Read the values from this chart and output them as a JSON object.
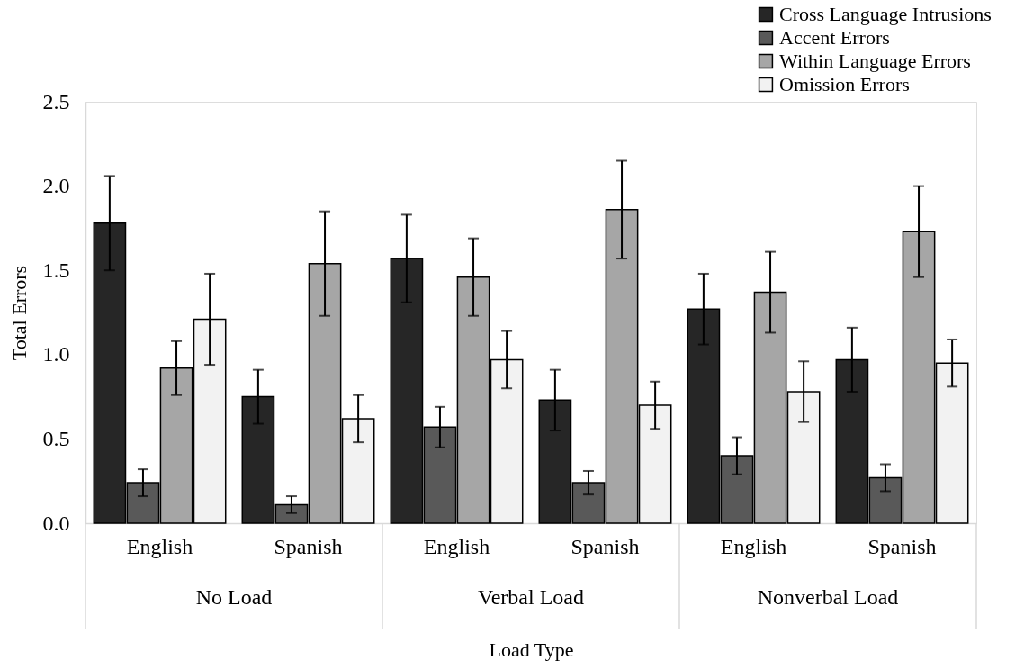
{
  "chart_data": {
    "type": "bar",
    "xlabel": "Load Type",
    "ylabel": "Total Errors",
    "categories": [
      "English",
      "Spanish",
      "English",
      "Spanish",
      "English",
      "Spanish"
    ],
    "annotations": [
      "No Load",
      "Verbal Load",
      "Nonverbal Load"
    ],
    "series": [
      {
        "name": "Cross Language Intrusions",
        "color": "#262626",
        "values": [
          1.78,
          0.75,
          1.57,
          0.73,
          1.27,
          0.97
        ],
        "errors": [
          0.28,
          0.16,
          0.26,
          0.18,
          0.21,
          0.19
        ]
      },
      {
        "name": "Accent Errors",
        "color": "#595959",
        "values": [
          0.24,
          0.11,
          0.57,
          0.24,
          0.4,
          0.27
        ],
        "errors": [
          0.08,
          0.05,
          0.12,
          0.07,
          0.11,
          0.08
        ]
      },
      {
        "name": "Within Language Errors",
        "color": "#a6a6a6",
        "values": [
          0.92,
          1.54,
          1.46,
          1.86,
          1.37,
          1.73
        ],
        "errors": [
          0.16,
          0.31,
          0.23,
          0.29,
          0.24,
          0.27
        ]
      },
      {
        "name": "Omission Errors",
        "color": "#f2f2f2",
        "values": [
          1.21,
          0.62,
          0.97,
          0.7,
          0.78,
          0.95
        ],
        "errors": [
          0.27,
          0.14,
          0.17,
          0.14,
          0.18,
          0.14
        ]
      }
    ],
    "ylim": [
      0,
      2.5
    ],
    "yticks": [
      {
        "value": 0,
        "label": "0.0"
      },
      0.5,
      {
        "value": 1,
        "label": "1.0"
      },
      1.5,
      {
        "value": 2,
        "label": "2.0"
      },
      2.5
    ],
    "grid": false,
    "legend": "top right"
  }
}
